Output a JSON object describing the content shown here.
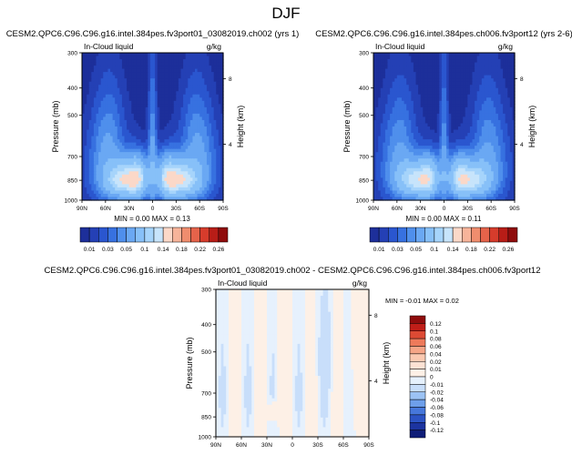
{
  "page_title": "DJF",
  "cb_top_labels": [
    "0.01",
    "0.03",
    "0.05",
    "0.1",
    "0.14",
    "0.18",
    "0.22",
    "0.26"
  ],
  "chart_data": [
    {
      "type": "heatmap",
      "title": "CESM2.QPC6.C96.C96.g16.intel.384pes.fv3port01_03082019.ch002 (yrs 1)",
      "field_label": "In-Cloud liquid",
      "units": "g/kg",
      "ylabel": "Pressure (mb)",
      "ylabel_right": "Height (km)",
      "x_ticks": [
        "90N",
        "60N",
        "30N",
        "0",
        "30S",
        "60S",
        "90S"
      ],
      "y_ticks": [
        "300",
        "400",
        "500",
        "700",
        "850",
        "1000"
      ],
      "height_ticks": [
        "8",
        "4"
      ],
      "min_max": "MIN = 0.00   MAX = 0.13",
      "levels": [
        0.01,
        0.02,
        0.03,
        0.04,
        0.05,
        0.07,
        0.1,
        0.12,
        0.14,
        0.16,
        0.18,
        0.2,
        0.22,
        0.24,
        0.26
      ],
      "colorbar_labels": [
        "0.01",
        "0.03",
        "0.05",
        "0.1",
        "0.14",
        "0.18",
        "0.22",
        "0.26"
      ]
    },
    {
      "type": "heatmap",
      "title": "CESM2.QPC6.C96.C96.g16.intel.384pes.ch006.fv3port12 (yrs 2-6)",
      "field_label": "In-Cloud liquid",
      "units": "g/kg",
      "ylabel": "Pressure (mb)",
      "ylabel_right": "Height (km)",
      "x_ticks": [
        "90N",
        "60N",
        "30N",
        "0",
        "30S",
        "60S",
        "90S"
      ],
      "y_ticks": [
        "300",
        "400",
        "500",
        "700",
        "850",
        "1000"
      ],
      "height_ticks": [
        "8",
        "4"
      ],
      "min_max": "MIN = 0.00   MAX = 0.11",
      "levels": [
        0.01,
        0.02,
        0.03,
        0.04,
        0.05,
        0.07,
        0.1,
        0.12,
        0.14,
        0.16,
        0.18,
        0.2,
        0.22,
        0.24,
        0.26
      ],
      "colorbar_labels": [
        "0.01",
        "0.03",
        "0.05",
        "0.1",
        "0.14",
        "0.18",
        "0.22",
        "0.26"
      ]
    },
    {
      "type": "heatmap",
      "title": "CESM2.QPC6.C96.C96.g16.intel.384pes.fv3port01_03082019.ch002 - CESM2.QPC6.C96.C96.g16.intel.384pes.ch006.fv3port12",
      "field_label": "In-Cloud liquid",
      "units": "g/kg",
      "ylabel": "Pressure (mb)",
      "ylabel_right": "Height (km)",
      "x_ticks": [
        "90N",
        "60N",
        "30N",
        "0",
        "30S",
        "60S",
        "90S"
      ],
      "y_ticks": [
        "300",
        "400",
        "500",
        "700",
        "850",
        "1000"
      ],
      "height_ticks": [
        "8",
        "4"
      ],
      "min_max": "MIN = -0.01   MAX = 0.02",
      "colorbar_labels": [
        "0.12",
        "0.1",
        "0.08",
        "0.06",
        "0.04",
        "0.02",
        "0.01",
        "0",
        "-0.01",
        "-0.02",
        "-0.04",
        "-0.06",
        "-0.08",
        "-0.1",
        "-0.12"
      ]
    }
  ],
  "colors": {
    "seq": [
      "#1d2f9a",
      "#2440b5",
      "#2a56cf",
      "#3771e0",
      "#4f8fec",
      "#6aa8f3",
      "#87c0f8",
      "#a6d4fb",
      "#c7e4fb",
      "#fbd8c8",
      "#f7b49a",
      "#f08d6e",
      "#e5634a",
      "#d63c2c",
      "#b81d17",
      "#8f0c0c"
    ],
    "diff": [
      "#8f0c0c",
      "#c01e18",
      "#dd4a34",
      "#ee7a5b",
      "#f6a587",
      "#fbc9b1",
      "#fde2d4",
      "#fdf0e6",
      "#e6f1fd",
      "#c8defa",
      "#9cc3f4",
      "#6e9fea",
      "#4677db",
      "#2c53c4",
      "#1c34a0",
      "#101e78"
    ]
  }
}
